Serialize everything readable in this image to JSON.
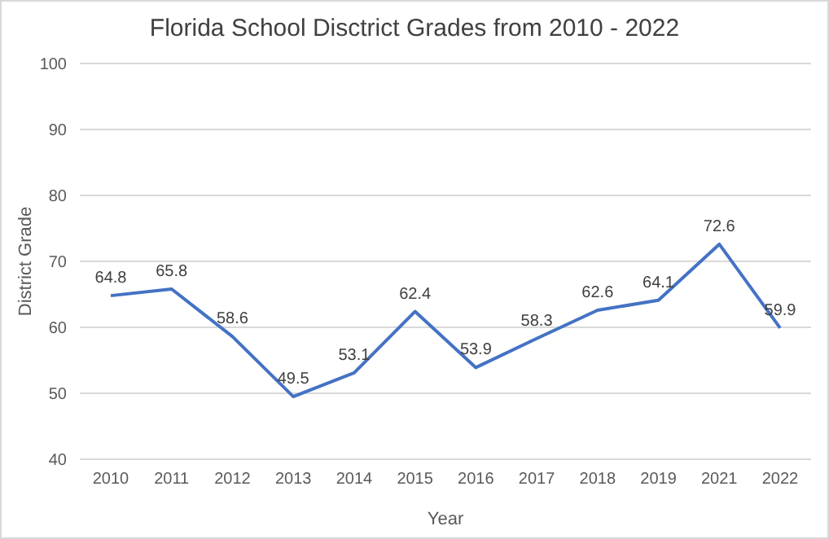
{
  "chart_data": {
    "type": "line",
    "title": "Florida School Disctrict Grades from 2010 - 2022",
    "xlabel": "Year",
    "ylabel": "District Grade",
    "categories": [
      "2010",
      "2011",
      "2012",
      "2013",
      "2014",
      "2015",
      "2016",
      "2017",
      "2018",
      "2019",
      "2021",
      "2022"
    ],
    "series": [
      {
        "color": "#4472c4",
        "values": [
          64.8,
          65.8,
          58.6,
          49.5,
          53.1,
          62.4,
          53.9,
          58.3,
          62.6,
          64.1,
          72.6,
          59.9
        ]
      }
    ],
    "ylim": [
      40,
      100
    ],
    "yticks": [
      40,
      50,
      60,
      70,
      80,
      90,
      100
    ],
    "grid": "y",
    "data_labels": true,
    "marker": "none",
    "line_style": "solid",
    "legend": false
  }
}
